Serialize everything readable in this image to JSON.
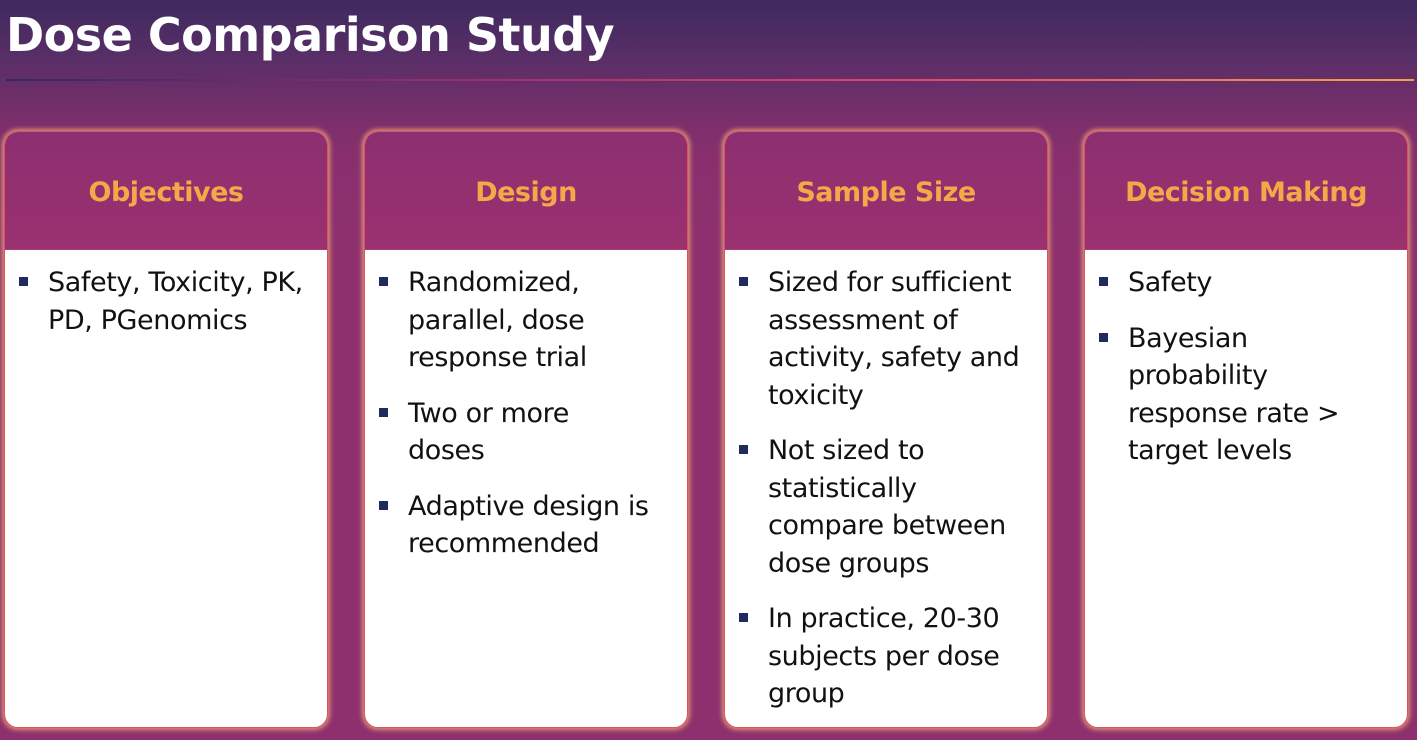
{
  "slide": {
    "title": "Dose Comparison Study"
  },
  "cards": [
    {
      "title": "Objectives",
      "bullets": [
        "Safety, Toxicity, PK, PD, PGenomics"
      ]
    },
    {
      "title": "Design",
      "bullets": [
        "Randomized, parallel, dose response trial",
        "Two or more doses",
        "Adaptive design is recommended"
      ]
    },
    {
      "title": "Sample Size",
      "bullets": [
        "Sized for sufficient assessment of activity, safety and toxicity",
        "Not sized to statistically compare between dose groups",
        "In practice, 20-30 subjects per dose group"
      ]
    },
    {
      "title": "Decision Making",
      "bullets": [
        "Safety",
        "Bayesian probability response rate > target levels"
      ]
    }
  ],
  "colors": {
    "header_text": "#f6a848",
    "card_border": "#e3505d",
    "bullet": "#1f2a5e",
    "title_text": "#ffffff"
  }
}
